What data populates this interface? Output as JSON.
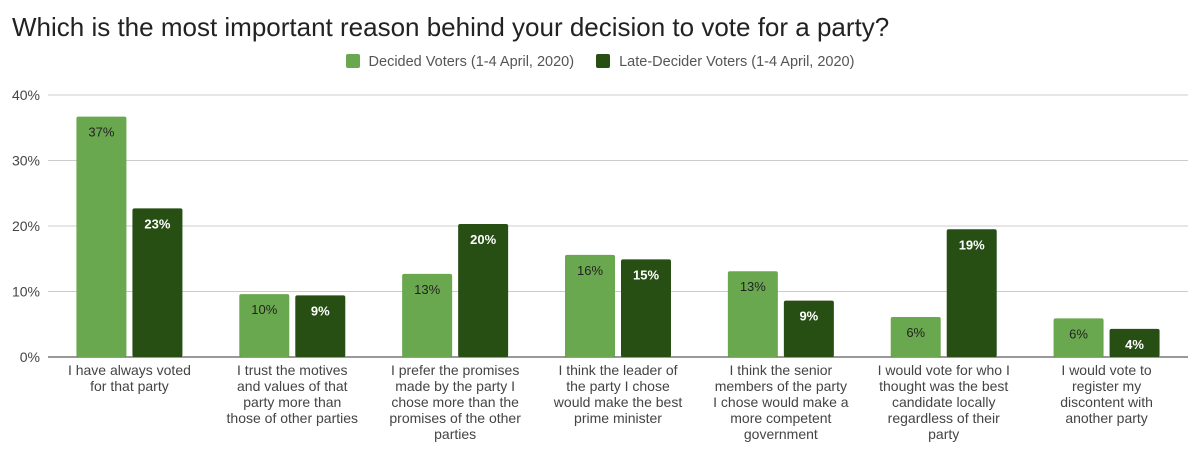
{
  "chart_data": {
    "type": "bar",
    "title": "Which is the most important reason behind your decision to vote for a party?",
    "categories": [
      [
        "I have always voted",
        "for that party"
      ],
      [
        "I trust the motives",
        "and values of that",
        "party more than",
        "those of other parties"
      ],
      [
        "I prefer the promises",
        "made by the party I",
        "chose more than the",
        "promises of the other",
        "parties"
      ],
      [
        "I think the leader of",
        "the party I chose",
        "would make the best",
        "prime minister"
      ],
      [
        "I think the senior",
        "members of the party",
        "I chose would make a",
        "more competent",
        "government"
      ],
      [
        "I would vote for who I",
        "thought was the best",
        "candidate locally",
        "regardless of their",
        "party"
      ],
      [
        "I would vote to",
        "register my",
        "discontent with",
        "another party"
      ]
    ],
    "series": [
      {
        "name": "Decided Voters (1-4 April, 2020)",
        "color": "#6aa84f",
        "values": [
          36.7,
          9.6,
          12.7,
          15.6,
          13.1,
          6.1,
          5.9
        ],
        "labels": [
          "37%",
          "10%",
          "13%",
          "16%",
          "13%",
          "6%",
          "6%"
        ]
      },
      {
        "name": "Late-Decider Voters (1-4 April, 2020)",
        "color": "#274e13",
        "values": [
          22.7,
          9.4,
          20.3,
          14.9,
          8.6,
          19.5,
          4.3
        ],
        "labels": [
          "23%",
          "9%",
          "20%",
          "15%",
          "9%",
          "19%",
          "4%"
        ]
      }
    ],
    "yticks": [
      "0%",
      "10%",
      "20%",
      "30%",
      "40%"
    ],
    "ylim": [
      0,
      40
    ],
    "grid": true,
    "legend_position": "top"
  }
}
